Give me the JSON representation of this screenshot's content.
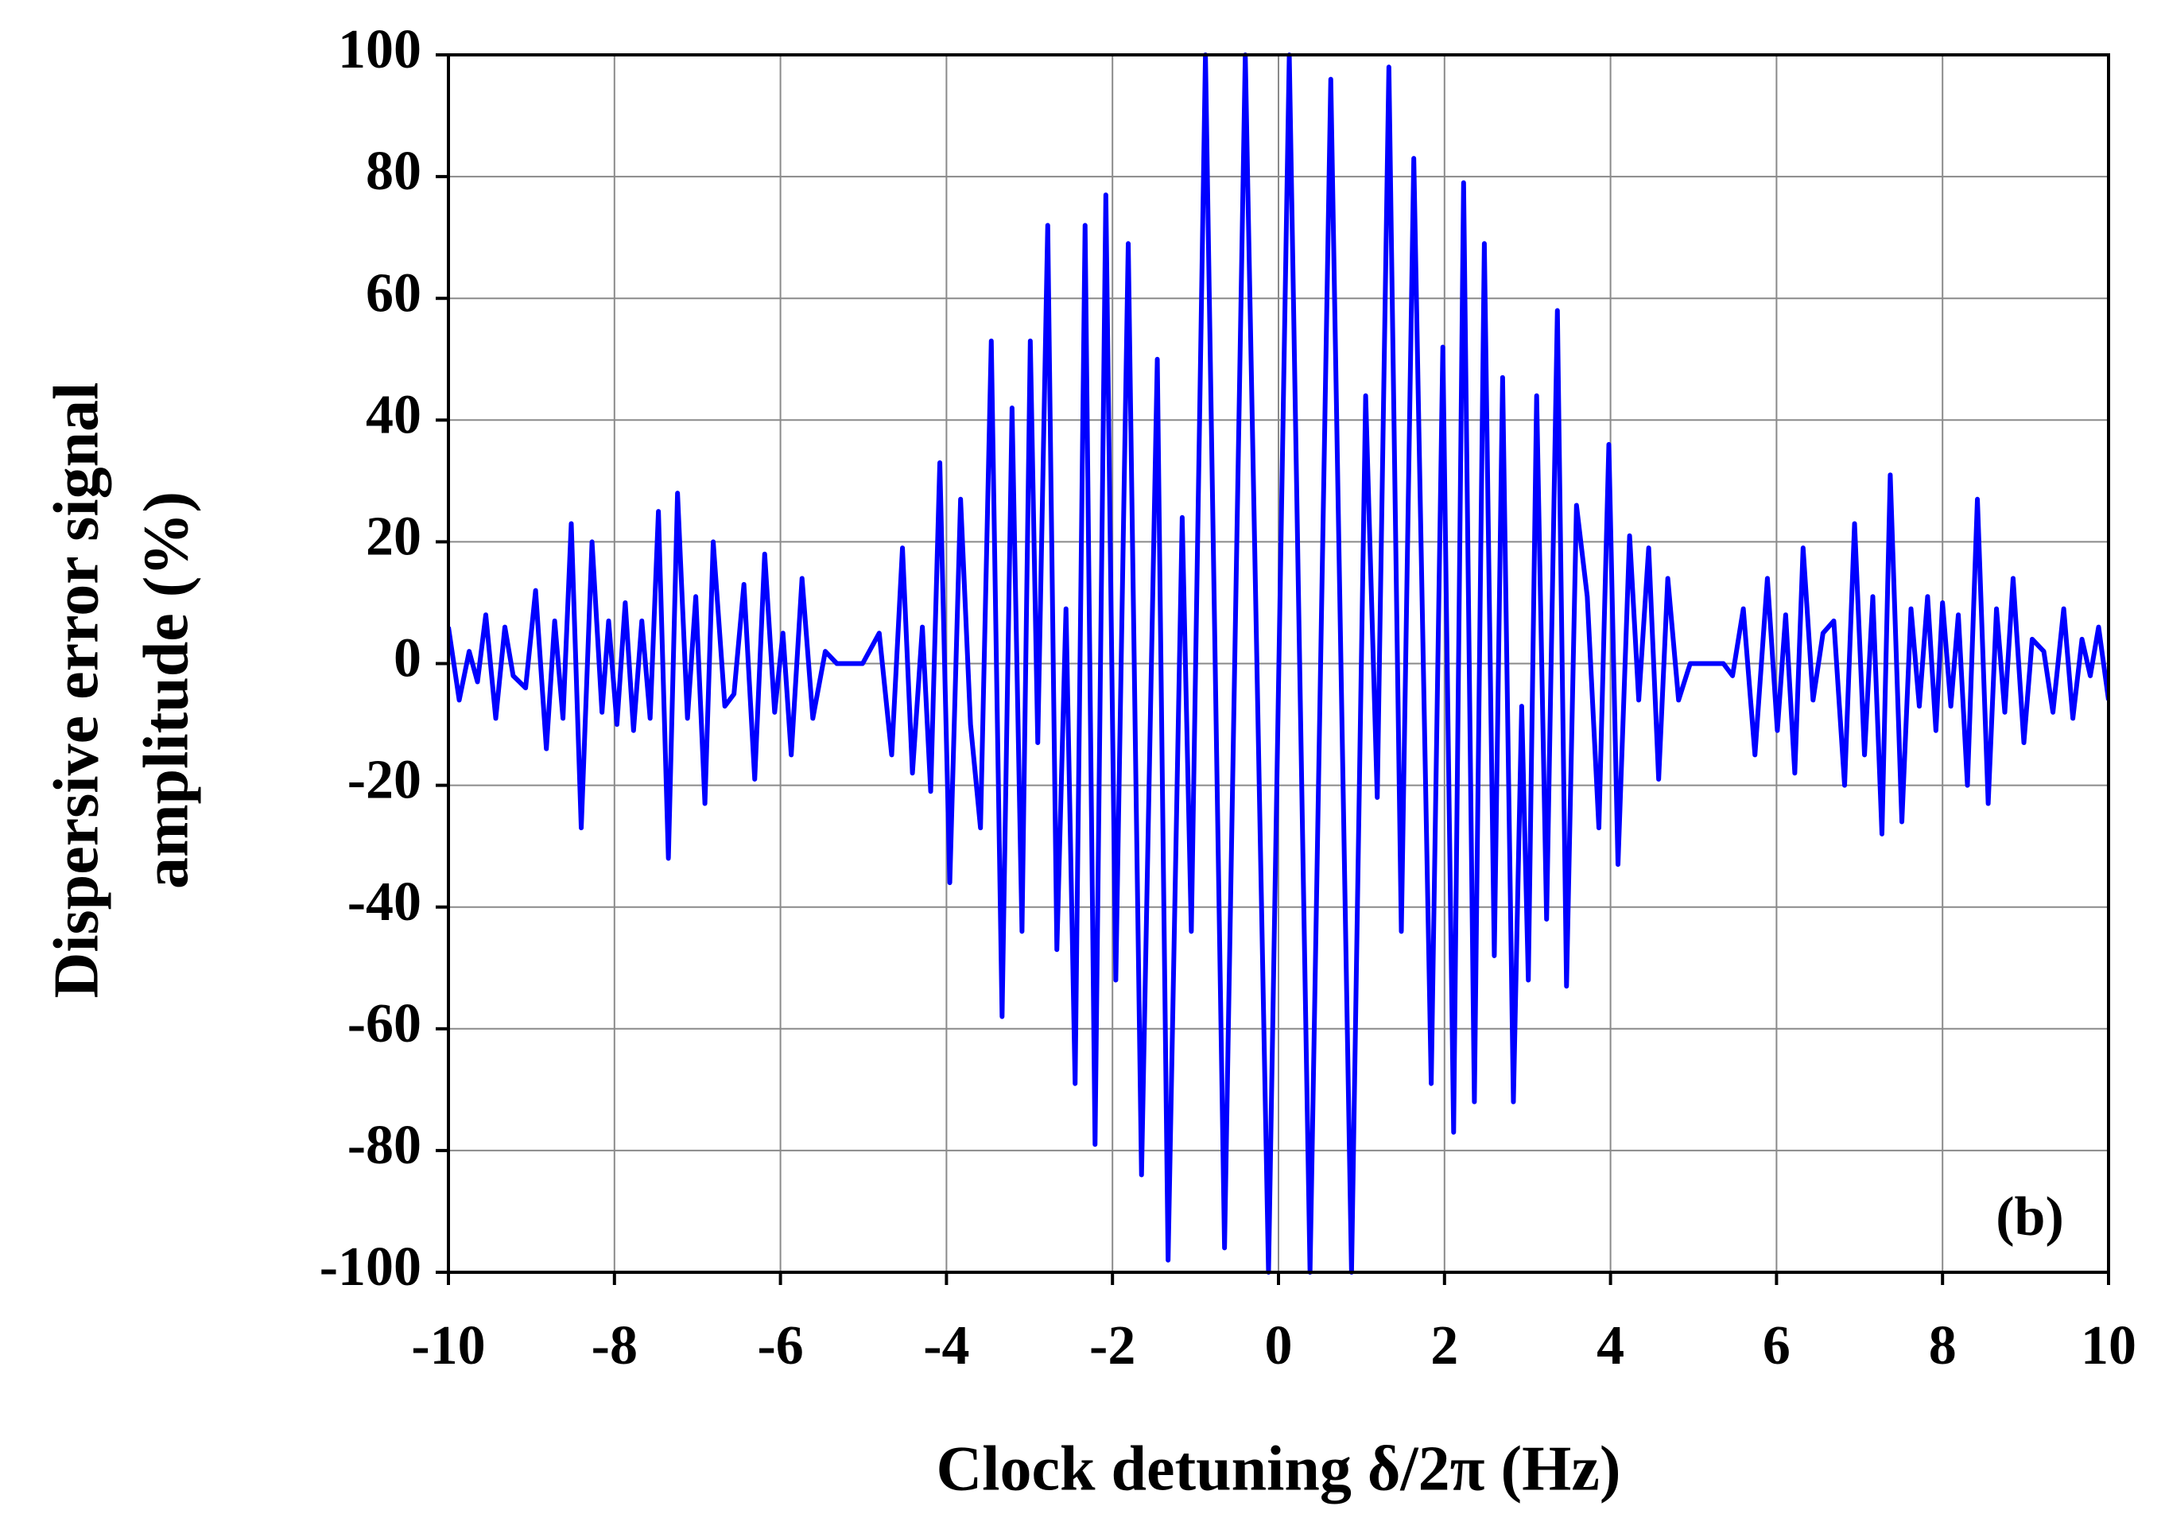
{
  "chart_data": {
    "type": "line",
    "xlabel": "Clock detuning δ/2π (Hz)",
    "ylabel": [
      "Dispersive error signal",
      "amplitude (%)"
    ],
    "annotation": "(b)",
    "xlim": [
      -10,
      10
    ],
    "xticks": [
      -10,
      -8,
      -6,
      -4,
      -2,
      0,
      2,
      4,
      6,
      8,
      10
    ],
    "ylim": [
      -100,
      100
    ],
    "yticks": [
      -100,
      -80,
      -60,
      -40,
      -20,
      0,
      20,
      40,
      60,
      80,
      100
    ],
    "grid": true,
    "series": [
      {
        "color": "#0000ff",
        "x": [
          -10,
          -9.87,
          -9.75,
          -9.65,
          -9.55,
          -9.43,
          -9.32,
          -9.22,
          -9.07,
          -8.95,
          -8.82,
          -8.72,
          -8.62,
          -8.52,
          -8.4,
          -8.27,
          -8.15,
          -8.07,
          -7.97,
          -7.87,
          -7.77,
          -7.67,
          -7.57,
          -7.47,
          -7.35,
          -7.24,
          -7.12,
          -7.02,
          -6.91,
          -6.81,
          -6.67,
          -6.56,
          -6.44,
          -6.31,
          -6.19,
          -6.07,
          -5.97,
          -5.87,
          -5.74,
          -5.61,
          -5.46,
          -5.32,
          -5.01,
          -4.81,
          -4.66,
          -4.53,
          -4.41,
          -4.29,
          -4.19,
          -4.08,
          -3.96,
          -3.83,
          -3.71,
          -3.59,
          -3.46,
          -3.33,
          -3.21,
          -3.09,
          -2.99,
          -2.9,
          -2.78,
          -2.67,
          -2.56,
          -2.45,
          -2.33,
          -2.21,
          -2.08,
          -1.96,
          -1.81,
          -1.65,
          -1.46,
          -1.33,
          -1.16,
          -1.05,
          -0.88,
          -0.65,
          -0.4,
          -0.12,
          0.13,
          0.38,
          0.63,
          0.88,
          1.05,
          1.19,
          1.33,
          1.48,
          1.63,
          1.84,
          1.98,
          2.11,
          2.23,
          2.36,
          2.48,
          2.6,
          2.7,
          2.83,
          2.93,
          3.01,
          3.11,
          3.23,
          3.36,
          3.47,
          3.59,
          3.72,
          3.86,
          3.98,
          4.09,
          4.23,
          4.34,
          4.46,
          4.58,
          4.69,
          4.82,
          4.96,
          5.36,
          5.47,
          5.6,
          5.74,
          5.89,
          6.01,
          6.11,
          6.22,
          6.32,
          6.44,
          6.56,
          6.69,
          6.82,
          6.94,
          7.06,
          7.16,
          7.27,
          7.37,
          7.51,
          7.62,
          7.72,
          7.82,
          7.92,
          8,
          8.1,
          8.19,
          8.3,
          8.42,
          8.55,
          8.65,
          8.75,
          8.85,
          8.98,
          9.08,
          9.22,
          9.33,
          9.46,
          9.57,
          9.68,
          9.78,
          9.88,
          10
        ],
        "values": [
          6,
          -6,
          2,
          -3,
          8,
          -9,
          6,
          -2,
          -4,
          12,
          -14,
          7,
          -9,
          23,
          -27,
          20,
          -8,
          7,
          -10,
          10,
          -11,
          7,
          -9,
          25,
          -32,
          28,
          -9,
          11,
          -23,
          20,
          -7,
          -5,
          13,
          -19,
          18,
          -8,
          5,
          -15,
          14,
          -9,
          2,
          0,
          0,
          5,
          -15,
          19,
          -18,
          6,
          -21,
          33,
          -36,
          27,
          -10,
          -27,
          53,
          -58,
          42,
          -44,
          53,
          -13,
          72,
          -47,
          9,
          -69,
          72,
          -79,
          77,
          -52,
          69,
          -84,
          50,
          -98,
          24,
          -44,
          100,
          -96,
          100,
          -100,
          100,
          -100,
          96,
          -100,
          44,
          -22,
          98,
          -44,
          83,
          -69,
          52,
          -77,
          79,
          -72,
          69,
          -48,
          47,
          -72,
          -7,
          -52,
          44,
          -42,
          58,
          -53,
          26,
          11,
          -27,
          36,
          -33,
          21,
          -6,
          19,
          -19,
          14,
          -6,
          0,
          0,
          -2,
          9,
          -15,
          14,
          -11,
          8,
          -18,
          19,
          -6,
          5,
          7,
          -20,
          23,
          -15,
          11,
          -28,
          31,
          -26,
          9,
          -7,
          11,
          -11,
          10,
          -7,
          8,
          -20,
          27,
          -23,
          9,
          -8,
          14,
          -13,
          4,
          2,
          -8,
          9,
          -9,
          4,
          -2,
          6,
          -6
        ]
      }
    ]
  }
}
